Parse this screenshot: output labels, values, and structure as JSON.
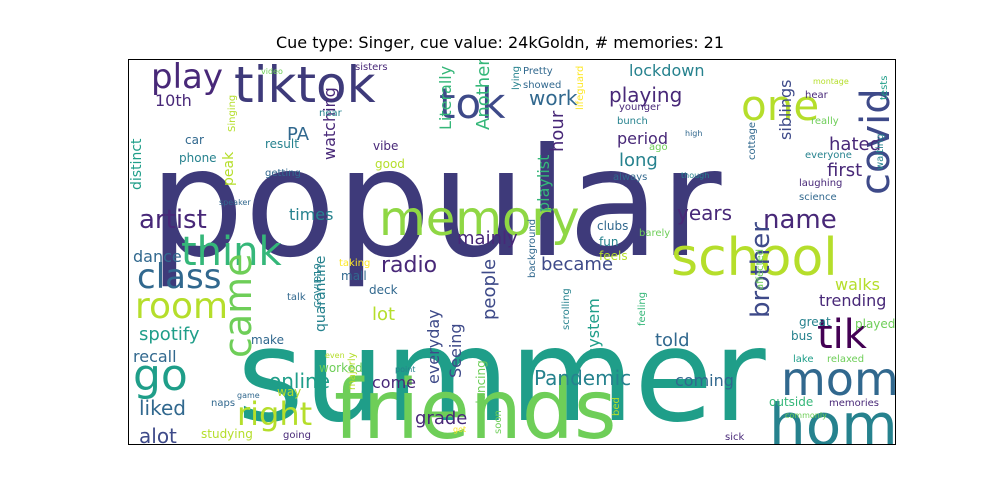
{
  "title": "Cue type: Singer, cue value: 24kGoldn, # memories: 21",
  "palette": {
    "darkpurple": "#482878",
    "indigo": "#3e4a89",
    "blue": "#31688e",
    "teal": "#26828e",
    "green": "#1f9e89",
    "lightgreen": "#35b779",
    "lime": "#6ece58",
    "yellowgreen": "#b5de2b",
    "yellow": "#fde725",
    "purple": "#440154"
  },
  "words": [
    {
      "text": "popular",
      "color": "#3e3a7a"
    },
    {
      "text": "summer",
      "color": "#1f9e89"
    },
    {
      "text": "friends",
      "color": "#6ece58"
    },
    {
      "text": "memory",
      "color": "#8fd744"
    },
    {
      "text": "tiktok",
      "color": "#3e3a7a"
    },
    {
      "text": "school",
      "color": "#b5de2b"
    },
    {
      "text": "home",
      "color": "#26828e"
    },
    {
      "text": "mom",
      "color": "#31688e"
    },
    {
      "text": "think",
      "color": "#35b779"
    },
    {
      "text": "tok",
      "color": "#3e4a89"
    },
    {
      "text": "one",
      "color": "#b5de2b"
    },
    {
      "text": "covid",
      "color": "#3e4a89"
    },
    {
      "text": "play",
      "color": "#482878"
    },
    {
      "text": "tik",
      "color": "#440154"
    },
    {
      "text": "room",
      "color": "#b5de2b"
    },
    {
      "text": "class",
      "color": "#31688e"
    },
    {
      "text": "go",
      "color": "#1f9e89"
    },
    {
      "text": "came",
      "color": "#6ece58"
    },
    {
      "text": "right",
      "color": "#b5de2b"
    },
    {
      "text": "name",
      "color": "#482878"
    },
    {
      "text": "artist",
      "color": "#482878"
    },
    {
      "text": "brother",
      "color": "#3e4a89"
    },
    {
      "text": "online",
      "color": "#1f9e89"
    },
    {
      "text": "Pandemic",
      "color": "#26828e"
    },
    {
      "text": "radio",
      "color": "#482878"
    },
    {
      "text": "years",
      "color": "#482878"
    },
    {
      "text": "playing",
      "color": "#482878"
    },
    {
      "text": "work",
      "color": "#31688e"
    },
    {
      "text": "liked",
      "color": "#31688e"
    },
    {
      "text": "alot",
      "color": "#3e4a89"
    },
    {
      "text": "10th",
      "color": "#482878"
    },
    {
      "text": "spotify",
      "color": "#1f9e89"
    },
    {
      "text": "dance",
      "color": "#31688e"
    },
    {
      "text": "recall",
      "color": "#31688e"
    },
    {
      "text": "became",
      "color": "#3e4a89"
    },
    {
      "text": "mainly",
      "color": "#482878"
    },
    {
      "text": "grade",
      "color": "#482878"
    },
    {
      "text": "people",
      "color": "#3e4a89"
    },
    {
      "text": "told",
      "color": "#31688e"
    },
    {
      "text": "coming",
      "color": "#31688e"
    },
    {
      "text": "come",
      "color": "#482878"
    },
    {
      "text": "lot",
      "color": "#b5de2b"
    },
    {
      "text": "times",
      "color": "#26828e"
    },
    {
      "text": "watching",
      "color": "#482878"
    },
    {
      "text": "PA",
      "color": "#31688e"
    },
    {
      "text": "hated",
      "color": "#482878"
    },
    {
      "text": "first",
      "color": "#482878"
    },
    {
      "text": "long",
      "color": "#26828e"
    },
    {
      "text": "hour",
      "color": "#482878"
    },
    {
      "text": "period",
      "color": "#482878"
    },
    {
      "text": "Literally",
      "color": "#35b779"
    },
    {
      "text": "Another",
      "color": "#35b779"
    },
    {
      "text": "playlist",
      "color": "#35b779"
    },
    {
      "text": "siblings",
      "color": "#3e4a89"
    },
    {
      "text": "trending",
      "color": "#482878"
    },
    {
      "text": "walks",
      "color": "#b5de2b"
    },
    {
      "text": "lockdown",
      "color": "#26828e"
    },
    {
      "text": "system",
      "color": "#1f9e89"
    },
    {
      "text": "everyday",
      "color": "#3e4a89"
    },
    {
      "text": "Seeing",
      "color": "#3e4a89"
    },
    {
      "text": "quarantine",
      "color": "#26828e"
    },
    {
      "text": "distinct",
      "color": "#1f9e89"
    },
    {
      "text": "peak",
      "color": "#b5de2b"
    },
    {
      "text": "Singing",
      "color": "#b5de2b"
    },
    {
      "text": "car",
      "color": "#31688e"
    },
    {
      "text": "phone",
      "color": "#26828e"
    },
    {
      "text": "result",
      "color": "#26828e"
    },
    {
      "text": "getting",
      "color": "#31688e"
    },
    {
      "text": "vibe",
      "color": "#482878"
    },
    {
      "text": "good",
      "color": "#b5de2b"
    },
    {
      "text": "near",
      "color": "#26828e"
    },
    {
      "text": "sisters",
      "color": "#482878"
    },
    {
      "text": "video",
      "color": "#6ece58"
    },
    {
      "text": "Pretty",
      "color": "#31688e"
    },
    {
      "text": "showed",
      "color": "#31688e"
    },
    {
      "text": "lying",
      "color": "#26828e"
    },
    {
      "text": "lifeguard",
      "color": "#fde725"
    },
    {
      "text": "younger",
      "color": "#482878"
    },
    {
      "text": "bunch",
      "color": "#26828e"
    },
    {
      "text": "always",
      "color": "#31688e"
    },
    {
      "text": "ago",
      "color": "#6ece58"
    },
    {
      "text": "high",
      "color": "#31688e"
    },
    {
      "text": "though",
      "color": "#26828e"
    },
    {
      "text": "hear",
      "color": "#482878"
    },
    {
      "text": "montage",
      "color": "#b5de2b"
    },
    {
      "text": "really",
      "color": "#6ece58"
    },
    {
      "text": "tests",
      "color": "#1f9e89"
    },
    {
      "text": "everyone",
      "color": "#26828e"
    },
    {
      "text": "laughing",
      "color": "#482878"
    },
    {
      "text": "science",
      "color": "#31688e"
    },
    {
      "text": "waiting",
      "color": "#26828e"
    },
    {
      "text": "cottage",
      "color": "#31688e"
    },
    {
      "text": "clubs",
      "color": "#31688e"
    },
    {
      "text": "fun",
      "color": "#26828e"
    },
    {
      "text": "feels",
      "color": "#b5de2b"
    },
    {
      "text": "barely",
      "color": "#6ece58"
    },
    {
      "text": "affected",
      "color": "#6ece58"
    },
    {
      "text": "great",
      "color": "#26828e"
    },
    {
      "text": "played",
      "color": "#6ece58"
    },
    {
      "text": "bus",
      "color": "#26828e"
    },
    {
      "text": "relaxed",
      "color": "#6ece58"
    },
    {
      "text": "lake",
      "color": "#1f9e89"
    },
    {
      "text": "outside",
      "color": "#35b779"
    },
    {
      "text": "memories",
      "color": "#482878"
    },
    {
      "text": "commonly",
      "color": "#6ece58"
    },
    {
      "text": "sick",
      "color": "#482878"
    },
    {
      "text": "bed",
      "color": "#b5de2b"
    },
    {
      "text": "feeling",
      "color": "#35b779"
    },
    {
      "text": "scrolling",
      "color": "#26828e"
    },
    {
      "text": "background",
      "color": "#31688e"
    },
    {
      "text": "dancing",
      "color": "#6ece58"
    },
    {
      "text": "soon",
      "color": "#6ece58"
    },
    {
      "text": "got",
      "color": "#fde725"
    },
    {
      "text": "majorly",
      "color": "#b5de2b"
    },
    {
      "text": "point",
      "color": "#26828e"
    },
    {
      "text": "even",
      "color": "#b5de2b"
    },
    {
      "text": "worked",
      "color": "#6ece58"
    },
    {
      "text": "COVID19",
      "color": "#26828e"
    },
    {
      "text": "deck",
      "color": "#31688e"
    },
    {
      "text": "mall",
      "color": "#31688e"
    },
    {
      "text": "taking",
      "color": "#fde725"
    },
    {
      "text": "talk",
      "color": "#31688e"
    },
    {
      "text": "make",
      "color": "#31688e"
    },
    {
      "text": "way",
      "color": "#b5de2b"
    },
    {
      "text": "game",
      "color": "#31688e"
    },
    {
      "text": "naps",
      "color": "#31688e"
    },
    {
      "text": "going",
      "color": "#482878"
    },
    {
      "text": "studying",
      "color": "#b5de2b"
    },
    {
      "text": "speaker",
      "color": "#31688e"
    }
  ]
}
